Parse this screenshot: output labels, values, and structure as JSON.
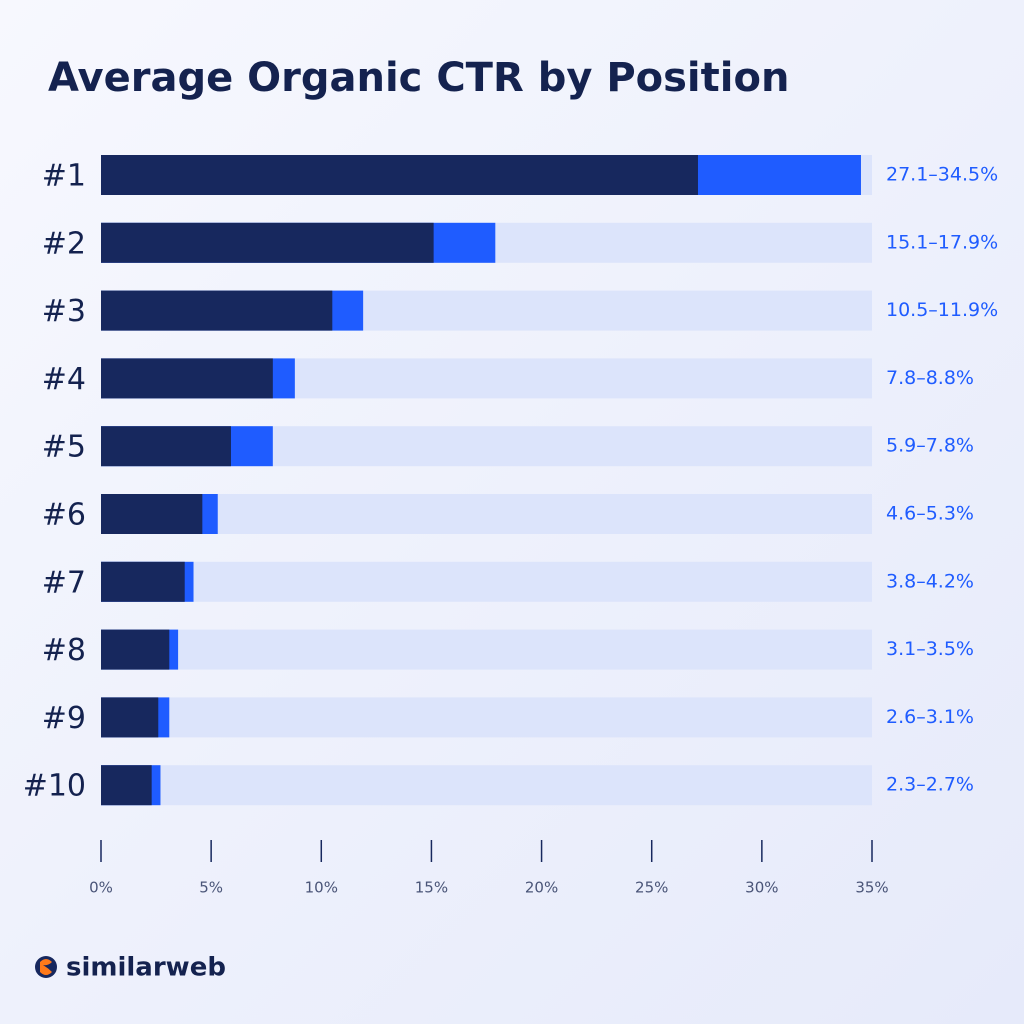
{
  "chart_data": {
    "type": "range_bar",
    "title": "Average Organic CTR by Position",
    "orientation": "horizontal",
    "categories": [
      "#1",
      "#2",
      "#3",
      "#4",
      "#5",
      "#6",
      "#7",
      "#8",
      "#9",
      "#10"
    ],
    "series": [
      {
        "color": "#17285e",
        "values": [
          27.1,
          15.1,
          10.5,
          7.8,
          5.9,
          4.6,
          3.8,
          3.1,
          2.6,
          2.3
        ]
      },
      {
        "color": "#1f5cff",
        "values": [
          34.5,
          17.9,
          11.9,
          8.8,
          7.8,
          5.3,
          4.2,
          3.5,
          3.1,
          2.7
        ]
      }
    ],
    "value_labels": [
      "27.1–34.5%",
      "15.1–17.9%",
      "10.5–11.9%",
      "7.8–8.8%",
      "5.9–7.8%",
      "4.6–5.3%",
      "3.8–4.2%",
      "3.1–3.5%",
      "2.6–3.1%",
      "2.3–2.7%"
    ],
    "xlim": [
      0,
      35
    ],
    "xticks": [
      {
        "value": 0,
        "label": "0%"
      },
      {
        "value": 5,
        "label": "5%"
      },
      {
        "value": 10,
        "label": "10%"
      },
      {
        "value": 15,
        "label": "15%"
      },
      {
        "value": 20,
        "label": "20%"
      },
      {
        "value": 25,
        "label": "25%"
      },
      {
        "value": 30,
        "label": "30%"
      },
      {
        "value": 35,
        "label": "35%"
      }
    ],
    "track_color": "#dce4fb"
  },
  "brand": "similarweb"
}
